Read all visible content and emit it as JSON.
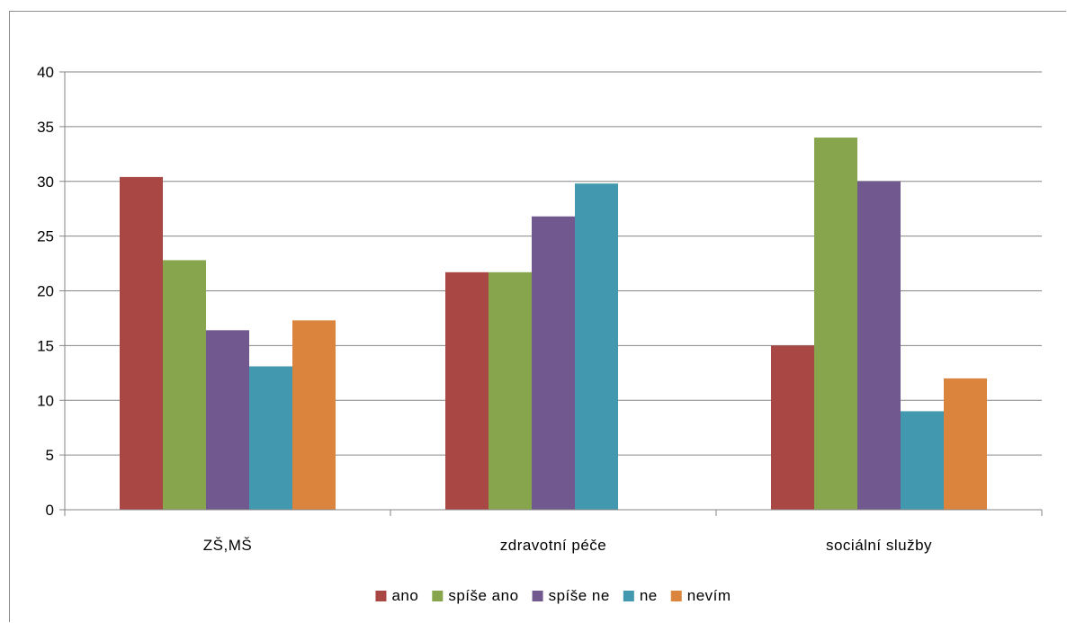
{
  "chart_data": {
    "type": "bar",
    "categories": [
      "ZŠ,MŠ",
      "zdravotní péče",
      "sociální služby"
    ],
    "series": [
      {
        "name": "ano",
        "color": "#A94745",
        "values": [
          30.4,
          21.7,
          15.0
        ]
      },
      {
        "name": "spíše ano",
        "color": "#87A54D",
        "values": [
          22.8,
          21.7,
          34.0
        ]
      },
      {
        "name": "spíše ne",
        "color": "#71588F",
        "values": [
          16.4,
          26.8,
          30.0
        ]
      },
      {
        "name": "ne",
        "color": "#4198AF",
        "values": [
          13.1,
          29.8,
          9.0
        ]
      },
      {
        "name": "nevím",
        "color": "#DB843D",
        "values": [
          17.3,
          null,
          12.0
        ]
      }
    ],
    "y_ticks": [
      "0",
      "5",
      "10",
      "15",
      "20",
      "25",
      "30",
      "35",
      "40"
    ],
    "ylim": [
      0,
      40
    ],
    "grid": true,
    "legend_position": "bottom",
    "gridline_color": "#868686",
    "axis_color": "#868686"
  }
}
